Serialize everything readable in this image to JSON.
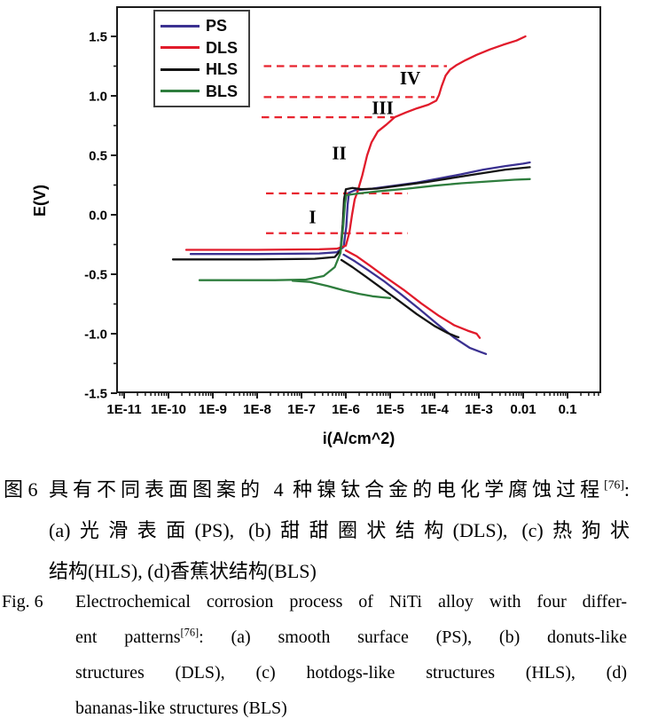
{
  "chart_data": {
    "type": "line",
    "title": "",
    "xlabel": "i(A/cm^2)",
    "ylabel": "E(V)",
    "x_scale": "log10",
    "grid": false,
    "legend_position": "top-left-inside",
    "xlim_log": [
      -11.16,
      -0.26
    ],
    "ylim": [
      -1.5,
      1.75
    ],
    "x_tick_labels": [
      "1E-11",
      "1E-10",
      "1E-9",
      "1E-8",
      "1E-7",
      "1E-6",
      "1E-5",
      "1E-4",
      "1E-3",
      "0.01",
      "0.1"
    ],
    "x_tick_logs": [
      -11,
      -10,
      -9,
      -8,
      -7,
      -6,
      -5,
      -4,
      -3,
      -2,
      -1
    ],
    "y_ticks": [
      1.5,
      1.0,
      0.5,
      0.0,
      -0.5,
      -1.0,
      -1.5
    ],
    "y_tick_labels": [
      "1.5",
      "1.0",
      "0.5",
      "0.0",
      "-0.5",
      "-1.0",
      "-1.5"
    ],
    "y_minor_ticks": [
      1.25,
      0.75,
      0.25,
      -0.25,
      -0.75,
      -1.25
    ],
    "guide_color": "#e8232e",
    "series": [
      {
        "name": "PS",
        "color": "#3b3191",
        "ecorr_V": -0.33,
        "branches": {
          "anodic": [
            [
              -9.5,
              -0.33
            ],
            [
              -8.0,
              -0.33
            ],
            [
              -6.6,
              -0.325
            ],
            [
              -6.2,
              -0.315
            ],
            [
              -6.05,
              -0.27
            ],
            [
              -5.99,
              -0.1
            ],
            [
              -5.96,
              0.08
            ],
            [
              -5.93,
              0.185
            ],
            [
              -5.8,
              0.205
            ],
            [
              -5.4,
              0.22
            ],
            [
              -4.9,
              0.245
            ],
            [
              -4.4,
              0.27
            ],
            [
              -3.9,
              0.305
            ],
            [
              -3.4,
              0.34
            ],
            [
              -2.9,
              0.38
            ],
            [
              -2.4,
              0.41
            ],
            [
              -2.0,
              0.43
            ],
            [
              -1.85,
              0.44
            ]
          ],
          "cathodic": [
            [
              -6.05,
              -0.335
            ],
            [
              -5.8,
              -0.39
            ],
            [
              -5.5,
              -0.465
            ],
            [
              -5.15,
              -0.555
            ],
            [
              -4.75,
              -0.67
            ],
            [
              -4.35,
              -0.79
            ],
            [
              -3.95,
              -0.915
            ],
            [
              -3.55,
              -1.035
            ],
            [
              -3.2,
              -1.12
            ],
            [
              -2.95,
              -1.155
            ],
            [
              -2.84,
              -1.17
            ]
          ]
        }
      },
      {
        "name": "DLS",
        "color": "#e11b2b",
        "ecorr_V": -0.3,
        "branches": {
          "anodic": [
            [
              -9.6,
              -0.295
            ],
            [
              -8.0,
              -0.295
            ],
            [
              -6.6,
              -0.29
            ],
            [
              -6.2,
              -0.285
            ],
            [
              -6.0,
              -0.26
            ],
            [
              -5.92,
              -0.15
            ],
            [
              -5.86,
              0.0
            ],
            [
              -5.8,
              0.13
            ],
            [
              -5.74,
              0.19
            ],
            [
              -5.63,
              0.33
            ],
            [
              -5.52,
              0.5
            ],
            [
              -5.42,
              0.61
            ],
            [
              -5.28,
              0.7
            ],
            [
              -5.08,
              0.76
            ],
            [
              -4.9,
              0.82
            ],
            [
              -4.65,
              0.86
            ],
            [
              -4.4,
              0.895
            ],
            [
              -4.14,
              0.925
            ],
            [
              -3.96,
              0.96
            ],
            [
              -3.9,
              1.005
            ],
            [
              -3.84,
              1.08
            ],
            [
              -3.75,
              1.17
            ],
            [
              -3.65,
              1.22
            ],
            [
              -3.5,
              1.26
            ],
            [
              -3.3,
              1.3
            ],
            [
              -3.05,
              1.345
            ],
            [
              -2.75,
              1.39
            ],
            [
              -2.45,
              1.43
            ],
            [
              -2.15,
              1.465
            ],
            [
              -1.95,
              1.5
            ]
          ],
          "cathodic": [
            [
              -6.0,
              -0.3
            ],
            [
              -5.75,
              -0.35
            ],
            [
              -5.45,
              -0.43
            ],
            [
              -5.1,
              -0.525
            ],
            [
              -4.7,
              -0.63
            ],
            [
              -4.3,
              -0.745
            ],
            [
              -3.9,
              -0.85
            ],
            [
              -3.55,
              -0.93
            ],
            [
              -3.25,
              -0.975
            ],
            [
              -3.05,
              -1.0
            ],
            [
              -2.98,
              -1.035
            ]
          ]
        }
      },
      {
        "name": "HLS",
        "color": "#141414",
        "ecorr_V": -0.375,
        "branches": {
          "anodic": [
            [
              -9.9,
              -0.375
            ],
            [
              -8.0,
              -0.375
            ],
            [
              -6.7,
              -0.37
            ],
            [
              -6.25,
              -0.355
            ],
            [
              -6.12,
              -0.3
            ],
            [
              -6.07,
              -0.08
            ],
            [
              -6.04,
              0.13
            ],
            [
              -6.0,
              0.215
            ],
            [
              -5.85,
              0.225
            ],
            [
              -5.65,
              0.215
            ],
            [
              -5.3,
              0.22
            ],
            [
              -4.8,
              0.245
            ],
            [
              -4.2,
              0.275
            ],
            [
              -3.6,
              0.31
            ],
            [
              -3.0,
              0.345
            ],
            [
              -2.4,
              0.38
            ],
            [
              -1.85,
              0.4
            ]
          ],
          "cathodic": [
            [
              -6.1,
              -0.38
            ],
            [
              -5.85,
              -0.44
            ],
            [
              -5.55,
              -0.52
            ],
            [
              -5.2,
              -0.615
            ],
            [
              -4.8,
              -0.725
            ],
            [
              -4.4,
              -0.835
            ],
            [
              -4.0,
              -0.935
            ],
            [
              -3.7,
              -0.995
            ],
            [
              -3.5,
              -1.025
            ],
            [
              -3.46,
              -1.03
            ]
          ]
        }
      },
      {
        "name": "BLS",
        "color": "#2e7d3d",
        "ecorr_V": -0.55,
        "branches": {
          "anodic": [
            [
              -9.3,
              -0.55
            ],
            [
              -7.6,
              -0.55
            ],
            [
              -6.9,
              -0.545
            ],
            [
              -6.5,
              -0.515
            ],
            [
              -6.25,
              -0.44
            ],
            [
              -6.12,
              -0.32
            ],
            [
              -6.06,
              -0.1
            ],
            [
              -6.02,
              0.09
            ],
            [
              -5.99,
              0.165
            ],
            [
              -5.7,
              0.18
            ],
            [
              -5.2,
              0.2
            ],
            [
              -4.6,
              0.22
            ],
            [
              -4.0,
              0.245
            ],
            [
              -3.4,
              0.265
            ],
            [
              -2.8,
              0.28
            ],
            [
              -2.2,
              0.295
            ],
            [
              -1.85,
              0.3
            ]
          ],
          "cathodic": [
            [
              -7.2,
              -0.555
            ],
            [
              -6.8,
              -0.565
            ],
            [
              -6.4,
              -0.6
            ],
            [
              -6.05,
              -0.635
            ],
            [
              -5.7,
              -0.665
            ],
            [
              -5.4,
              -0.685
            ],
            [
              -5.15,
              -0.695
            ],
            [
              -5.0,
              -0.7
            ]
          ]
        }
      }
    ],
    "dashed_guides": [
      {
        "E": 1.25,
        "range_log": [
          -7.85,
          -3.72
        ]
      },
      {
        "E": 0.99,
        "range_log": [
          -7.85,
          -4.0
        ]
      },
      {
        "E": 0.82,
        "range_log": [
          -7.9,
          -4.92
        ]
      },
      {
        "E": 0.18,
        "range_log": [
          -7.8,
          -4.6
        ]
      },
      {
        "E": -0.155,
        "range_log": [
          -7.8,
          -4.6
        ]
      }
    ],
    "region_labels": [
      {
        "text": "I",
        "logi": -6.75,
        "E": -0.02
      },
      {
        "text": "II",
        "logi": -6.15,
        "E": 0.52
      },
      {
        "text": "III",
        "logi": -5.17,
        "E": 0.9
      },
      {
        "text": "IV",
        "logi": -4.55,
        "E": 1.15
      }
    ]
  },
  "caption_cn": {
    "label": "图 6",
    "line1_text": "具有不同表面图案的 4 种镍钛合金的电化学腐蚀过程",
    "ref": "[76]",
    "line1_colon": ":",
    "line2": "(a)光滑表面(PS), (b)甜甜圈状结构(DLS), (c)热狗状",
    "line3": "结构(HLS), (d)香蕉状结构(BLS)"
  },
  "caption_en": {
    "label": "Fig. 6",
    "line1": "Electrochemical corrosion process of NiTi alloy with four differ-",
    "line2_pre": "ent patterns",
    "ref": "[76]",
    "line2_post": ": (a) smooth surface (PS), (b) donuts-like",
    "line3": "structures (DLS), (c) hotdogs-like structures (HLS), (d)",
    "line4": "bananas-like structures (BLS)"
  }
}
